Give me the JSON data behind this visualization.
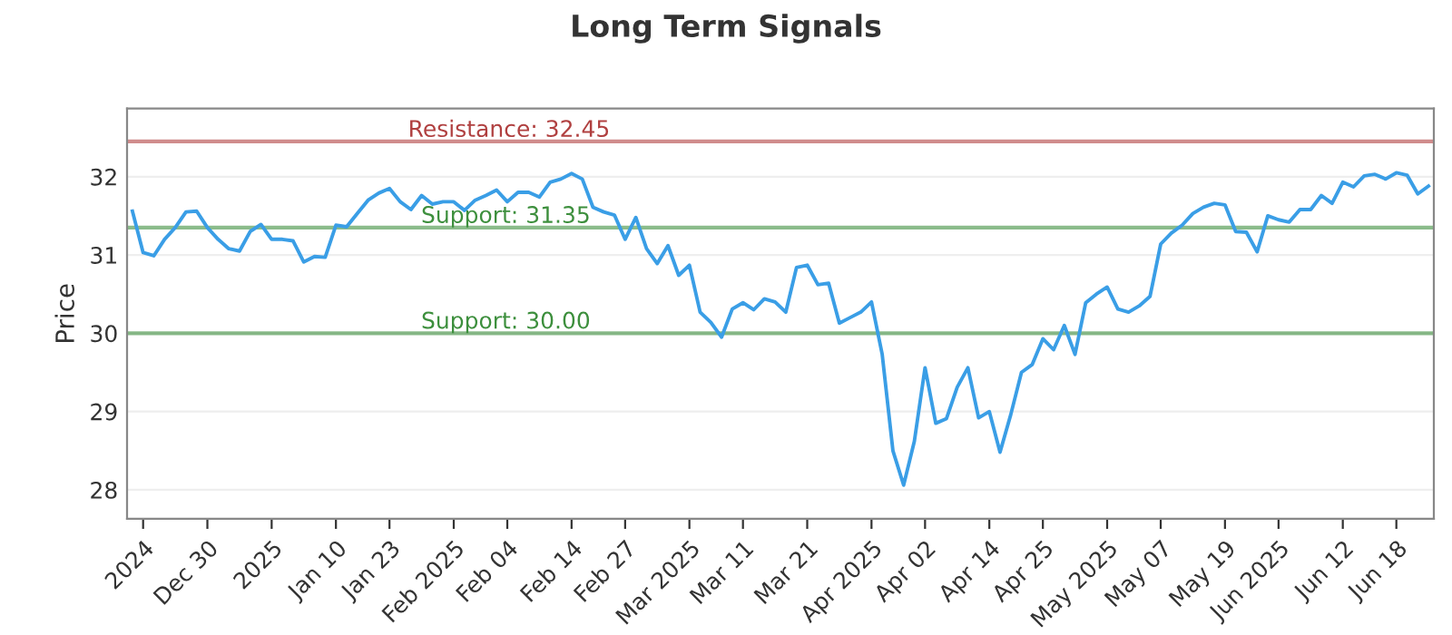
{
  "chart_data": {
    "type": "line",
    "title": "Long Term Signals",
    "ylabel": "Price",
    "categories": [
      null,
      "2024",
      null,
      null,
      null,
      null,
      null,
      "Dec 30",
      null,
      null,
      null,
      null,
      null,
      "2025",
      null,
      null,
      null,
      null,
      null,
      "Jan 10",
      null,
      null,
      null,
      null,
      "Jan 23",
      null,
      null,
      null,
      null,
      null,
      "Feb 2025",
      null,
      null,
      null,
      null,
      "Feb 04",
      null,
      null,
      null,
      null,
      null,
      "Feb 14",
      null,
      null,
      null,
      null,
      "Feb 27",
      null,
      null,
      null,
      null,
      null,
      "Mar 2025",
      null,
      null,
      null,
      null,
      "Mar 11",
      null,
      null,
      null,
      null,
      null,
      "Mar 21",
      null,
      null,
      null,
      null,
      null,
      "Apr 2025",
      null,
      null,
      null,
      null,
      "Apr 02",
      null,
      null,
      null,
      null,
      null,
      "Apr 14",
      null,
      null,
      null,
      null,
      "Apr 25",
      null,
      null,
      null,
      null,
      null,
      "May 2025",
      null,
      null,
      null,
      null,
      "May 07",
      null,
      null,
      null,
      null,
      null,
      "May 19",
      null,
      null,
      null,
      null,
      "Jun 2025",
      null,
      null,
      null,
      null,
      null,
      "Jun 12",
      null,
      null,
      null,
      null,
      "Jun 18",
      null,
      null,
      null
    ],
    "series": [
      {
        "color": "#3a9ee6",
        "values": [
          31.56,
          31.03,
          30.99,
          31.2,
          31.35,
          31.55,
          31.56,
          31.35,
          31.2,
          31.08,
          31.05,
          31.3,
          31.39,
          31.2,
          31.2,
          31.18,
          30.91,
          30.98,
          30.97,
          31.38,
          31.36,
          31.53,
          31.7,
          31.79,
          31.85,
          31.68,
          31.58,
          31.76,
          31.65,
          31.68,
          31.68,
          31.57,
          31.7,
          31.76,
          31.83,
          31.68,
          31.8,
          31.8,
          31.74,
          31.93,
          31.97,
          32.04,
          31.97,
          31.61,
          31.55,
          31.51,
          31.2,
          31.48,
          31.08,
          30.89,
          31.12,
          30.74,
          30.87,
          30.27,
          30.14,
          29.95,
          30.31,
          30.39,
          30.3,
          30.44,
          30.4,
          30.27,
          30.84,
          30.87,
          30.62,
          30.64,
          30.13,
          30.2,
          30.27,
          30.4,
          29.73,
          28.5,
          28.06,
          28.62,
          29.56,
          28.85,
          28.91,
          29.31,
          29.56,
          28.92,
          29.0,
          28.48,
          28.96,
          29.5,
          29.6,
          29.93,
          29.79,
          30.1,
          29.73,
          30.39,
          30.5,
          30.59,
          30.31,
          30.27,
          30.35,
          30.47,
          31.14,
          31.28,
          31.38,
          31.53,
          31.61,
          31.66,
          31.64,
          31.3,
          31.29,
          31.04,
          31.5,
          31.45,
          31.42,
          31.58,
          31.58,
          31.76,
          31.66,
          31.93,
          31.87,
          32.01,
          32.03,
          31.97,
          32.05,
          32.02,
          31.78,
          31.88
        ]
      }
    ],
    "ylim": [
      27.63,
      32.87
    ],
    "yticks": [
      28,
      29,
      30,
      31,
      32
    ],
    "grid": "y",
    "marker": "none",
    "line_style": "solid",
    "ref_lines": [
      {
        "axis": "y",
        "value": 32.45,
        "label": "Resistance: 32.45",
        "color": "#b04040"
      },
      {
        "axis": "y",
        "value": 31.35,
        "label": "Support: 31.35",
        "color": "#3d8f3d"
      },
      {
        "axis": "y",
        "value": 30.0,
        "label": "Support: 30.00",
        "color": "#3d8f3d"
      }
    ]
  }
}
